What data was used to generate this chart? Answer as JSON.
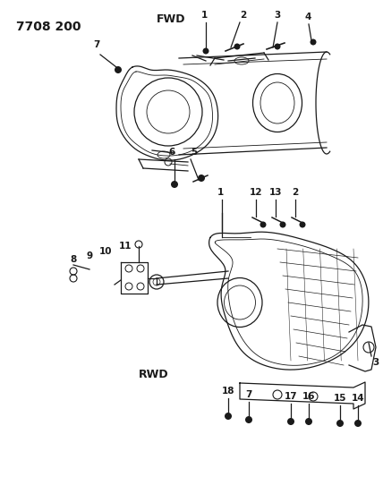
{
  "title": "7708 200",
  "bg_color": "#ffffff",
  "lc": "#1a1a1a",
  "fwd_label": "FWD",
  "rwd_label": "RWD",
  "figsize": [
    4.28,
    5.33
  ],
  "dpi": 100
}
